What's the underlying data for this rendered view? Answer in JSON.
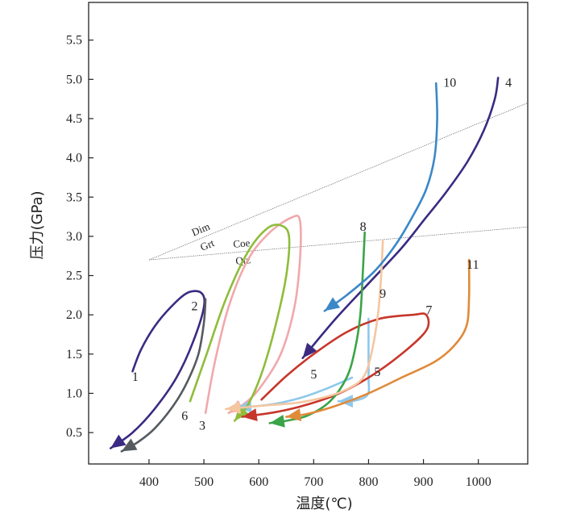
{
  "chart_data": {
    "type": "line",
    "title": "",
    "xlabel": "温度(℃)",
    "ylabel": "压力(GPa)",
    "xlim": [
      290,
      1090
    ],
    "ylim": [
      0.1,
      5.98
    ],
    "x_ticks": [
      "400",
      "500",
      "600",
      "700",
      "800",
      "900",
      "1000"
    ],
    "y_ticks": [
      "0.5",
      "1.0",
      "1.5",
      "2.0",
      "2.5",
      "3.0",
      "3.5",
      "4.0",
      "4.5",
      "5.0",
      "5.5"
    ],
    "phase_boundaries": [
      {
        "name": "Dim-Grt",
        "upper_label": "Dim",
        "lower_label": "Grt",
        "points": [
          [
            400,
            2.7
          ],
          [
            1090,
            4.7
          ]
        ]
      },
      {
        "name": "Coe-Qtz",
        "upper_label": "Coe",
        "lower_label": "Qtz",
        "points": [
          [
            400,
            2.7
          ],
          [
            1090,
            3.12
          ]
        ]
      }
    ],
    "series": [
      {
        "name": "1",
        "label": "1",
        "color": "#3b2a82",
        "points": [
          [
            370,
            1.28
          ],
          [
            385,
            1.55
          ],
          [
            410,
            1.85
          ],
          [
            440,
            2.1
          ],
          [
            470,
            2.28
          ],
          [
            495,
            2.28
          ],
          [
            500,
            2.1
          ],
          [
            480,
            1.65
          ],
          [
            450,
            1.2
          ],
          [
            410,
            0.8
          ],
          [
            370,
            0.5
          ],
          [
            330,
            0.3
          ]
        ]
      },
      {
        "name": "2",
        "label": "2",
        "color": "#555a5e",
        "points": [
          [
            503,
            2.2
          ],
          [
            500,
            1.9
          ],
          [
            490,
            1.5
          ],
          [
            470,
            1.15
          ],
          [
            445,
            0.85
          ],
          [
            410,
            0.55
          ],
          [
            380,
            0.38
          ],
          [
            350,
            0.26
          ]
        ]
      },
      {
        "name": "3",
        "label": "3",
        "color": "#f1a8ac",
        "points": [
          [
            503,
            0.75
          ],
          [
            520,
            1.4
          ],
          [
            545,
            2.1
          ],
          [
            580,
            2.7
          ],
          [
            620,
            3.05
          ],
          [
            660,
            3.24
          ],
          [
            675,
            3.2
          ],
          [
            675,
            2.7
          ],
          [
            665,
            2.1
          ],
          [
            640,
            1.5
          ],
          [
            600,
            1.05
          ],
          [
            570,
            0.85
          ],
          [
            545,
            0.75
          ]
        ]
      },
      {
        "name": "4",
        "label": "4",
        "color": "#3b2a82",
        "points": [
          [
            1036,
            5.02
          ],
          [
            1030,
            4.75
          ],
          [
            1010,
            4.35
          ],
          [
            980,
            3.95
          ],
          [
            940,
            3.55
          ],
          [
            900,
            3.2
          ],
          [
            860,
            2.85
          ],
          [
            800,
            2.4
          ],
          [
            740,
            1.95
          ],
          [
            680,
            1.45
          ]
        ]
      },
      {
        "name": "5",
        "label": "5",
        "color": "#8ec8eb",
        "points": [
          [
            770,
            1.2
          ],
          [
            720,
            1.05
          ],
          [
            680,
            0.95
          ],
          [
            640,
            0.88
          ],
          [
            600,
            0.84
          ],
          [
            560,
            0.82
          ]
        ]
      },
      {
        "name": "5b",
        "label": "5",
        "color": "#8ec8eb",
        "points": [
          [
            800,
            1.95
          ],
          [
            800,
            1.55
          ],
          [
            800,
            1.2
          ],
          [
            798,
            0.98
          ],
          [
            770,
            0.9
          ],
          [
            745,
            0.9
          ]
        ]
      },
      {
        "name": "6",
        "label": "6",
        "color": "#8ebd3a",
        "points": [
          [
            475,
            0.9
          ],
          [
            505,
            1.5
          ],
          [
            540,
            2.2
          ],
          [
            580,
            2.8
          ],
          [
            615,
            3.1
          ],
          [
            640,
            3.14
          ],
          [
            655,
            3.0
          ],
          [
            650,
            2.5
          ],
          [
            630,
            1.85
          ],
          [
            605,
            1.25
          ],
          [
            580,
            0.85
          ],
          [
            556,
            0.65
          ]
        ]
      },
      {
        "name": "7",
        "label": "7",
        "color": "#c7362b",
        "points": [
          [
            605,
            0.92
          ],
          [
            650,
            1.22
          ],
          [
            700,
            1.5
          ],
          [
            760,
            1.78
          ],
          [
            820,
            1.95
          ],
          [
            880,
            2.0
          ],
          [
            905,
            2.0
          ],
          [
            905,
            1.8
          ],
          [
            860,
            1.5
          ],
          [
            800,
            1.2
          ],
          [
            740,
            0.98
          ],
          [
            680,
            0.84
          ],
          [
            630,
            0.76
          ],
          [
            570,
            0.7
          ]
        ]
      },
      {
        "name": "8",
        "label": "8",
        "color": "#3aa448",
        "points": [
          [
            793,
            3.05
          ],
          [
            790,
            2.6
          ],
          [
            785,
            2.0
          ],
          [
            775,
            1.55
          ],
          [
            760,
            1.2
          ],
          [
            730,
            0.9
          ],
          [
            690,
            0.72
          ],
          [
            650,
            0.65
          ],
          [
            620,
            0.62
          ]
        ]
      },
      {
        "name": "9",
        "label": "9",
        "color": "#f5c6a0",
        "points": [
          [
            826,
            2.95
          ],
          [
            823,
            2.5
          ],
          [
            817,
            2.0
          ],
          [
            805,
            1.5
          ],
          [
            790,
            1.2
          ],
          [
            760,
            1.05
          ],
          [
            720,
            0.95
          ],
          [
            670,
            0.88
          ],
          [
            620,
            0.85
          ],
          [
            570,
            0.82
          ],
          [
            540,
            0.8
          ]
        ]
      },
      {
        "name": "10",
        "label": "10",
        "color": "#3b88c8",
        "points": [
          [
            923,
            4.95
          ],
          [
            925,
            4.5
          ],
          [
            920,
            4.0
          ],
          [
            905,
            3.6
          ],
          [
            880,
            3.25
          ],
          [
            850,
            2.9
          ],
          [
            810,
            2.55
          ],
          [
            760,
            2.25
          ],
          [
            720,
            2.05
          ]
        ]
      },
      {
        "name": "11",
        "label": "11",
        "color": "#e08a3a",
        "points": [
          [
            983,
            2.7
          ],
          [
            983,
            2.2
          ],
          [
            978,
            1.85
          ],
          [
            955,
            1.6
          ],
          [
            920,
            1.4
          ],
          [
            860,
            1.2
          ],
          [
            800,
            1.0
          ],
          [
            740,
            0.84
          ],
          [
            690,
            0.74
          ],
          [
            650,
            0.7
          ]
        ]
      }
    ],
    "labels": [
      {
        "series": "1",
        "text": "1",
        "x": 375,
        "y": 1.22
      },
      {
        "series": "2",
        "text": "2",
        "x": 483,
        "y": 2.12
      },
      {
        "series": "3",
        "text": "3",
        "x": 497,
        "y": 0.6
      },
      {
        "series": "4",
        "text": "4",
        "x": 1055,
        "y": 4.97
      },
      {
        "series": "5",
        "text": "5",
        "x": 700,
        "y": 1.25
      },
      {
        "series": "5b",
        "text": "5",
        "x": 816,
        "y": 1.28
      },
      {
        "series": "6",
        "text": "6",
        "x": 465,
        "y": 0.72
      },
      {
        "series": "7",
        "text": "7",
        "x": 910,
        "y": 2.07
      },
      {
        "series": "8",
        "text": "8",
        "x": 790,
        "y": 3.13
      },
      {
        "series": "9",
        "text": "9",
        "x": 826,
        "y": 2.28
      },
      {
        "series": "10",
        "text": "10",
        "x": 948,
        "y": 4.97
      },
      {
        "series": "11",
        "text": "11",
        "x": 990,
        "y": 2.65
      }
    ],
    "grid": false,
    "legend": "none"
  }
}
